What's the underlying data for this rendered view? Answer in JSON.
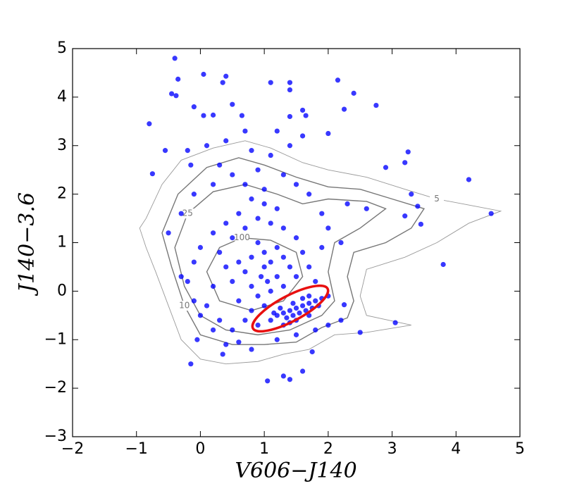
{
  "chart_data": {
    "type": "scatter",
    "xlabel": "V606−J140",
    "ylabel": "J140−3.6",
    "xlim": [
      -2,
      5
    ],
    "ylim": [
      -3,
      5
    ],
    "xticks": [
      {
        "value": -2,
        "label": "−2"
      },
      {
        "value": -1,
        "label": "−1"
      },
      0,
      1,
      2,
      3,
      4,
      5
    ],
    "yticks": [
      {
        "value": -3,
        "label": "−3"
      },
      {
        "value": -2,
        "label": "−2"
      },
      {
        "value": -1,
        "label": "−1"
      },
      0,
      1,
      2,
      3,
      4,
      5
    ],
    "series": [
      {
        "color": "#0000ff",
        "x": [
          -0.4,
          0.05,
          0.4,
          -0.35,
          -0.45,
          -0.38,
          0.35,
          1.1,
          1.4,
          1.4,
          2.15,
          2.4,
          2.75,
          2.25,
          -0.8,
          -0.1,
          0.05,
          0.2,
          0.5,
          0.65,
          1.4,
          1.6,
          1.65,
          2.0,
          3.25,
          3.2,
          2.9,
          4.2,
          3.3,
          3.4,
          3.2,
          3.45,
          4.55,
          3.8,
          3.05,
          2.25,
          2.5,
          -0.75,
          -0.55,
          -0.15,
          -0.15,
          -0.05,
          1.05,
          1.3,
          1.4,
          1.6,
          1.75,
          0.35,
          0.6,
          0.9,
          1.0,
          1.1,
          1.0,
          0.95,
          1.05,
          1.1,
          0.9,
          0.8,
          0.7,
          0.6,
          0.8,
          1.2,
          1.3,
          1.4,
          1.5,
          1.2,
          1.3,
          1.0,
          0.8,
          0.6,
          0.5,
          0.4,
          0.3,
          0.5,
          0.7,
          0.9,
          1.1,
          1.3,
          1.5,
          1.6,
          1.7,
          1.8,
          1.7,
          0.2,
          0.1,
          0.3,
          0.5,
          0.7,
          0.9,
          1.0,
          1.2,
          0.8,
          0.6,
          0.4,
          0.2,
          0.0,
          -0.1,
          -0.2,
          -0.1,
          1.0,
          0.7,
          0.5,
          0.3,
          0.9,
          1.1,
          0.8,
          1.3,
          1.5,
          1.7,
          1.9,
          2.0,
          2.2,
          1.9,
          2.3,
          2.6,
          1.4,
          1.6,
          1.2,
          0.7,
          0.4,
          0.1,
          -0.2,
          0.2,
          -0.1,
          -0.3,
          -0.5,
          -0.3,
          0.0,
          0.2,
          0.4,
          0.8,
          1.2,
          1.5,
          1.8,
          2.0,
          2.2,
          1.2,
          1.3,
          1.4,
          1.5,
          1.6,
          1.7,
          1.8,
          1.9,
          1.35,
          1.45,
          1.55,
          1.65,
          1.75,
          1.85,
          1.25,
          1.45,
          1.6,
          1.1,
          1.3,
          1.5,
          1.7,
          2.0,
          1.4,
          1.15
        ],
        "y": [
          4.8,
          4.47,
          4.43,
          4.37,
          4.07,
          4.03,
          4.3,
          4.3,
          4.3,
          4.15,
          4.35,
          4.08,
          3.83,
          3.75,
          3.45,
          3.8,
          3.62,
          3.63,
          3.85,
          3.62,
          3.6,
          3.73,
          3.62,
          3.25,
          2.87,
          2.65,
          2.55,
          2.3,
          2.0,
          1.75,
          1.55,
          1.38,
          1.6,
          0.55,
          -0.65,
          -0.28,
          -0.85,
          2.42,
          2.9,
          2.6,
          -1.5,
          -1.0,
          -1.85,
          -1.75,
          -1.82,
          -1.65,
          -1.25,
          -1.3,
          -1.05,
          1.0,
          0.8,
          0.6,
          0.5,
          0.3,
          0.2,
          0.0,
          -0.1,
          0.1,
          0.4,
          0.6,
          0.7,
          0.9,
          0.7,
          0.5,
          0.3,
          0.3,
          0.1,
          -0.3,
          -0.4,
          -0.2,
          0.2,
          0.5,
          0.8,
          1.1,
          1.3,
          1.5,
          1.4,
          1.3,
          1.1,
          0.8,
          0.5,
          0.2,
          -0.1,
          0.1,
          -0.3,
          -0.6,
          -0.8,
          -0.6,
          -0.7,
          1.8,
          1.7,
          1.9,
          1.6,
          1.4,
          1.2,
          0.9,
          0.6,
          0.2,
          -0.2,
          2.1,
          2.2,
          2.4,
          2.6,
          2.5,
          2.8,
          2.9,
          2.4,
          2.2,
          2.0,
          1.6,
          1.3,
          1.0,
          0.9,
          1.8,
          1.7,
          3.0,
          3.2,
          3.3,
          3.3,
          3.1,
          3.0,
          2.9,
          2.2,
          2.0,
          1.6,
          1.2,
          0.3,
          -0.5,
          -0.8,
          -1.1,
          -1.2,
          -1.0,
          -0.9,
          -0.8,
          -0.7,
          -0.6,
          -0.5,
          -0.45,
          -0.4,
          -0.35,
          -0.3,
          -0.25,
          -0.2,
          -0.15,
          -0.55,
          -0.5,
          -0.45,
          -0.4,
          -0.35,
          -0.3,
          -0.35,
          -0.25,
          -0.15,
          -0.6,
          -0.7,
          -0.6,
          -0.5,
          -0.1,
          -0.65,
          -0.45
        ]
      }
    ],
    "contours": [
      {
        "level": 5,
        "x": [
          -0.85,
          -0.6,
          -0.3,
          0.2,
          0.7,
          1.1,
          1.6,
          2.0,
          2.6,
          3.2,
          3.7,
          4.3,
          4.7,
          4.2,
          3.7,
          3.2,
          2.6,
          2.5,
          2.6,
          3.3,
          2.6,
          2.1,
          1.7,
          1.3,
          0.9,
          0.4,
          0.0,
          -0.3,
          -0.5,
          -0.7,
          -0.85,
          -0.95
        ],
        "y": [
          1.5,
          2.2,
          2.7,
          2.95,
          3.1,
          2.95,
          2.65,
          2.5,
          2.35,
          2.1,
          1.9,
          1.75,
          1.65,
          1.4,
          1.0,
          0.7,
          0.45,
          -0.1,
          -0.5,
          -0.7,
          -0.85,
          -0.9,
          -1.2,
          -1.3,
          -1.45,
          -1.5,
          -1.4,
          -1.0,
          -0.3,
          0.4,
          0.9,
          1.3
        ]
      },
      {
        "level": 10,
        "x": [
          -0.6,
          -0.35,
          0.1,
          0.6,
          1.0,
          1.5,
          2.0,
          2.5,
          3.0,
          3.5,
          3.3,
          2.9,
          2.4,
          2.3,
          2.4,
          2.3,
          1.9,
          1.5,
          1.0,
          0.5,
          0.0,
          -0.25,
          -0.45
        ],
        "y": [
          1.2,
          2.0,
          2.55,
          2.75,
          2.6,
          2.35,
          2.15,
          2.1,
          1.9,
          1.7,
          1.3,
          1.0,
          0.8,
          0.3,
          -0.2,
          -0.55,
          -0.75,
          -1.05,
          -1.1,
          -1.1,
          -0.9,
          -0.3,
          0.5
        ]
      },
      {
        "level": 25,
        "x": [
          -0.4,
          -0.2,
          0.2,
          0.7,
          1.2,
          1.6,
          2.0,
          2.6,
          2.9,
          2.5,
          2.1,
          2.0,
          2.1,
          1.9,
          1.4,
          0.9,
          0.4,
          0.0,
          -0.25
        ],
        "y": [
          0.9,
          1.6,
          2.05,
          2.2,
          2.0,
          1.8,
          1.9,
          1.85,
          1.7,
          1.3,
          1.0,
          0.4,
          -0.2,
          -0.5,
          -0.8,
          -0.9,
          -0.8,
          -0.5,
          0.1
        ]
      },
      {
        "level": 100,
        "x": [
          0.1,
          0.3,
          0.65,
          1.1,
          1.5,
          1.6,
          1.3,
          0.8,
          0.3
        ],
        "y": [
          0.4,
          0.9,
          1.1,
          1.05,
          0.8,
          0.3,
          -0.2,
          -0.4,
          -0.2
        ]
      }
    ]
  }
}
